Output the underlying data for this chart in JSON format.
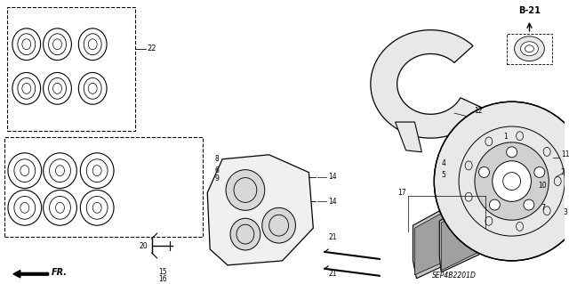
{
  "bg_color": "#ffffff",
  "line_color": "#000000",
  "diagram_code": "SEP4B2201D"
}
